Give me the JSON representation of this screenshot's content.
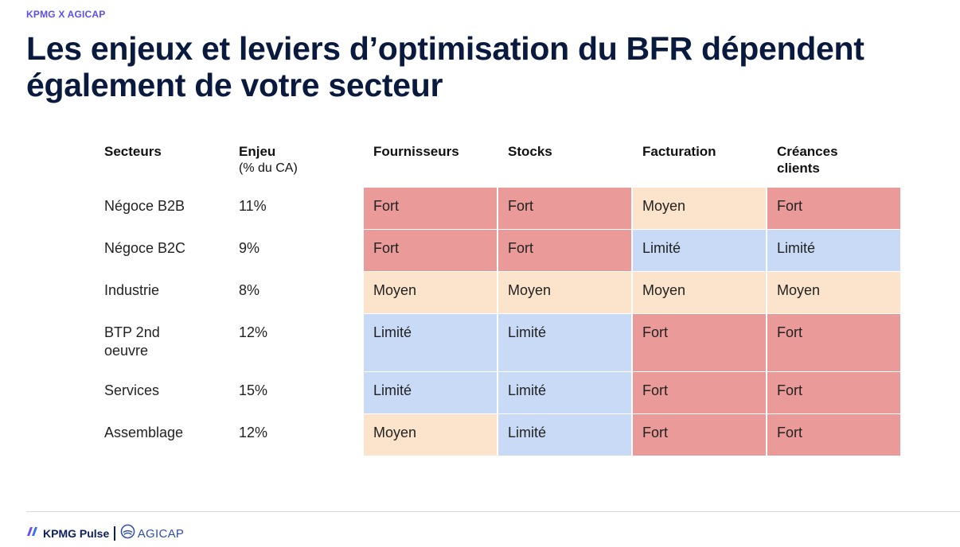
{
  "eyebrow": "KPMG X AGICAP",
  "title": "Les enjeux et leviers d’optimisation du BFR dépendent également de votre secteur",
  "table": {
    "headers": [
      {
        "label": "Secteurs",
        "sub": ""
      },
      {
        "label": "Enjeu",
        "sub": "(% du CA)"
      },
      {
        "label": "Fournisseurs",
        "sub": ""
      },
      {
        "label": "Stocks",
        "sub": ""
      },
      {
        "label": "Facturation",
        "sub": ""
      },
      {
        "label": "Créances clients",
        "sub": ""
      }
    ],
    "rows": [
      {
        "sector": "Négoce B2B",
        "enjeu": "11%",
        "cells": [
          "Fort",
          "Fort",
          "Moyen",
          "Fort"
        ]
      },
      {
        "sector": "Négoce B2C",
        "enjeu": "9%",
        "cells": [
          "Fort",
          "Fort",
          "Limité",
          "Limité"
        ]
      },
      {
        "sector": "Industrie",
        "enjeu": "8%",
        "cells": [
          "Moyen",
          "Moyen",
          "Moyen",
          "Moyen"
        ]
      },
      {
        "sector": "BTP 2nd oeuvre",
        "enjeu": "12%",
        "cells": [
          "Limité",
          "Limité",
          "Fort",
          "Fort"
        ]
      },
      {
        "sector": "Services",
        "enjeu": "15%",
        "cells": [
          "Limité",
          "Limité",
          "Fort",
          "Fort"
        ]
      },
      {
        "sector": "Assemblage",
        "enjeu": "12%",
        "cells": [
          "Moyen",
          "Limité",
          "Fort",
          "Fort"
        ]
      }
    ]
  },
  "level_colors": {
    "Fort": "#ea9a99",
    "Moyen": "#fce3cc",
    "Limité": "#c9daf6"
  },
  "footer": {
    "brand1": "KPMG Pulse",
    "brand2": "AGICAP",
    "brand1_icon": "kpmg-pulse-logo-icon",
    "brand2_icon": "agicap-logo-icon"
  }
}
